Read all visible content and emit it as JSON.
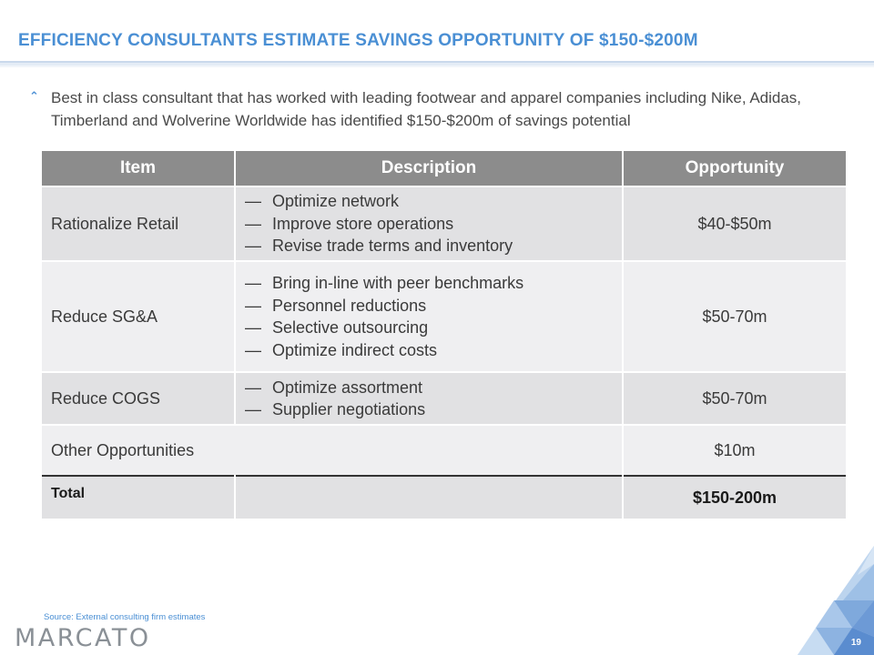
{
  "slide": {
    "title": "EFFICIENCY CONSULTANTS ESTIMATE SAVINGS OPPORTUNITY OF $150-$200M",
    "bullet": "Best in class consultant that has worked with leading footwear and apparel companies including Nike, Adidas, Timberland and Wolverine Worldwide has identified $150-$200m of savings potential",
    "bullet_icon": "caret-up-icon",
    "source": "Source: External consulting firm estimates",
    "logo_text": "MARCATO",
    "page_number": "19",
    "accent_color": "#4a8fd4"
  },
  "table": {
    "headers": [
      "Item",
      "Description",
      "Opportunity"
    ],
    "rows": [
      {
        "item": "Rationalize Retail",
        "description": [
          "Optimize network",
          "Improve store operations",
          "Revise trade terms and inventory"
        ],
        "opportunity": "$40-$50m"
      },
      {
        "item": "Reduce SG&A",
        "description": [
          "Bring in-line with peer benchmarks",
          "Personnel reductions",
          "Selective outsourcing",
          "Optimize indirect costs"
        ],
        "opportunity": "$50-70m"
      },
      {
        "item": "Reduce COGS",
        "description": [
          "Optimize assortment",
          "Supplier negotiations"
        ],
        "opportunity": "$50-70m"
      }
    ],
    "other": {
      "item": "Other Opportunities",
      "opportunity": "$10m"
    },
    "total": {
      "item": "Total",
      "opportunity": "$150-200m"
    }
  }
}
